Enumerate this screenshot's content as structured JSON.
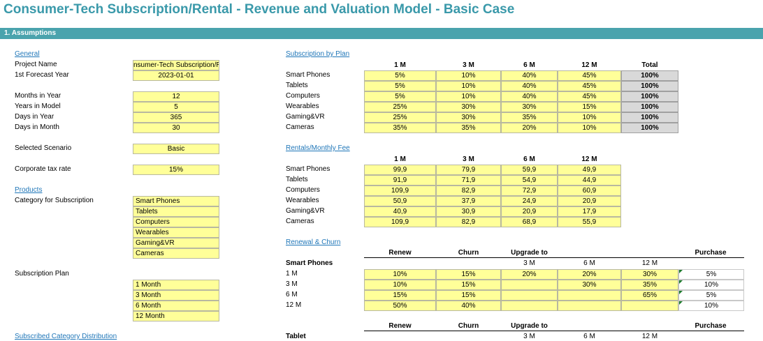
{
  "title": "Consumer-Tech Subscription/Rental - Revenue and Valuation Model - Basic Case",
  "section": "1.   Assumptions",
  "general": {
    "heading": "General",
    "rows": [
      {
        "label": "Project Name",
        "value": "nsumer-Tech Subscription/Rental"
      },
      {
        "label": "1st Forecast Year",
        "value": "2023-01-01"
      },
      {
        "label": "Months in Year",
        "value": "12"
      },
      {
        "label": "Years in Model",
        "value": "5"
      },
      {
        "label": "Days in Year",
        "value": "365"
      },
      {
        "label": "Days in Month",
        "value": "30"
      },
      {
        "label": "Selected Scenario",
        "value": "Basic"
      },
      {
        "label": "Corporate tax rate",
        "value": "15%"
      }
    ]
  },
  "products": {
    "heading": "Products",
    "category_label": "Category for Subscription",
    "categories": [
      "Smart Phones",
      "Tablets",
      "Computers",
      "Wearables",
      "Gaming&VR",
      "Cameras"
    ],
    "plan_label": "Subscription Plan",
    "plans": [
      "1 Month",
      "3 Month",
      "6 Month",
      "12 Month"
    ],
    "next_heading": "Subscribed Category Distribution"
  },
  "subscription_by_plan": {
    "heading": "Subscription by Plan",
    "columns": [
      "1 M",
      "3 M",
      "6 M",
      "12 M",
      "Total"
    ],
    "rows": [
      {
        "label": "Smart Phones",
        "values": [
          "5%",
          "10%",
          "40%",
          "45%"
        ],
        "total": "100%"
      },
      {
        "label": "Tablets",
        "values": [
          "5%",
          "10%",
          "40%",
          "45%"
        ],
        "total": "100%"
      },
      {
        "label": "Computers",
        "values": [
          "5%",
          "10%",
          "40%",
          "45%"
        ],
        "total": "100%"
      },
      {
        "label": "Wearables",
        "values": [
          "25%",
          "30%",
          "30%",
          "15%"
        ],
        "total": "100%"
      },
      {
        "label": "Gaming&VR",
        "values": [
          "25%",
          "30%",
          "35%",
          "10%"
        ],
        "total": "100%"
      },
      {
        "label": "Cameras",
        "values": [
          "35%",
          "35%",
          "20%",
          "10%"
        ],
        "total": "100%"
      }
    ]
  },
  "rentals": {
    "heading": "Rentals/Monthly Fee",
    "columns": [
      "1 M",
      "3 M",
      "6 M",
      "12 M"
    ],
    "rows": [
      {
        "label": "Smart Phones",
        "values": [
          "99,9",
          "79,9",
          "59,9",
          "49,9"
        ]
      },
      {
        "label": "Tablets",
        "values": [
          "91,9",
          "71,9",
          "54,9",
          "44,9"
        ]
      },
      {
        "label": "Computers",
        "values": [
          "109,9",
          "82,9",
          "72,9",
          "60,9"
        ]
      },
      {
        "label": "Wearables",
        "values": [
          "50,9",
          "37,9",
          "24,9",
          "20,9"
        ]
      },
      {
        "label": "Gaming&VR",
        "values": [
          "40,9",
          "30,9",
          "20,9",
          "17,9"
        ]
      },
      {
        "label": "Cameras",
        "values": [
          "109,9",
          "82,9",
          "68,9",
          "55,9"
        ]
      }
    ]
  },
  "renewal": {
    "heading": "Renewal & Churn",
    "col_renew": "Renew",
    "col_churn": "Churn",
    "col_upgrade": "Upgrade to",
    "col_purchase": "Purchase",
    "upgrade_cols": [
      "3 M",
      "6 M",
      "12 M"
    ],
    "block1": {
      "name": "Smart Phones",
      "rows": [
        {
          "label": "1 M",
          "renew": "10%",
          "churn": "15%",
          "up3": "20%",
          "up6": "20%",
          "up12": "30%",
          "purchase": "5%"
        },
        {
          "label": "3 M",
          "renew": "10%",
          "churn": "15%",
          "up3": "",
          "up6": "30%",
          "up12": "35%",
          "purchase": "10%"
        },
        {
          "label": "6 M",
          "renew": "15%",
          "churn": "15%",
          "up3": "",
          "up6": "",
          "up12": "65%",
          "purchase": "5%"
        },
        {
          "label": "12 M",
          "renew": "50%",
          "churn": "40%",
          "up3": "",
          "up6": "",
          "up12": "",
          "purchase": "10%"
        }
      ]
    },
    "block2": {
      "name": "Tablet"
    }
  }
}
